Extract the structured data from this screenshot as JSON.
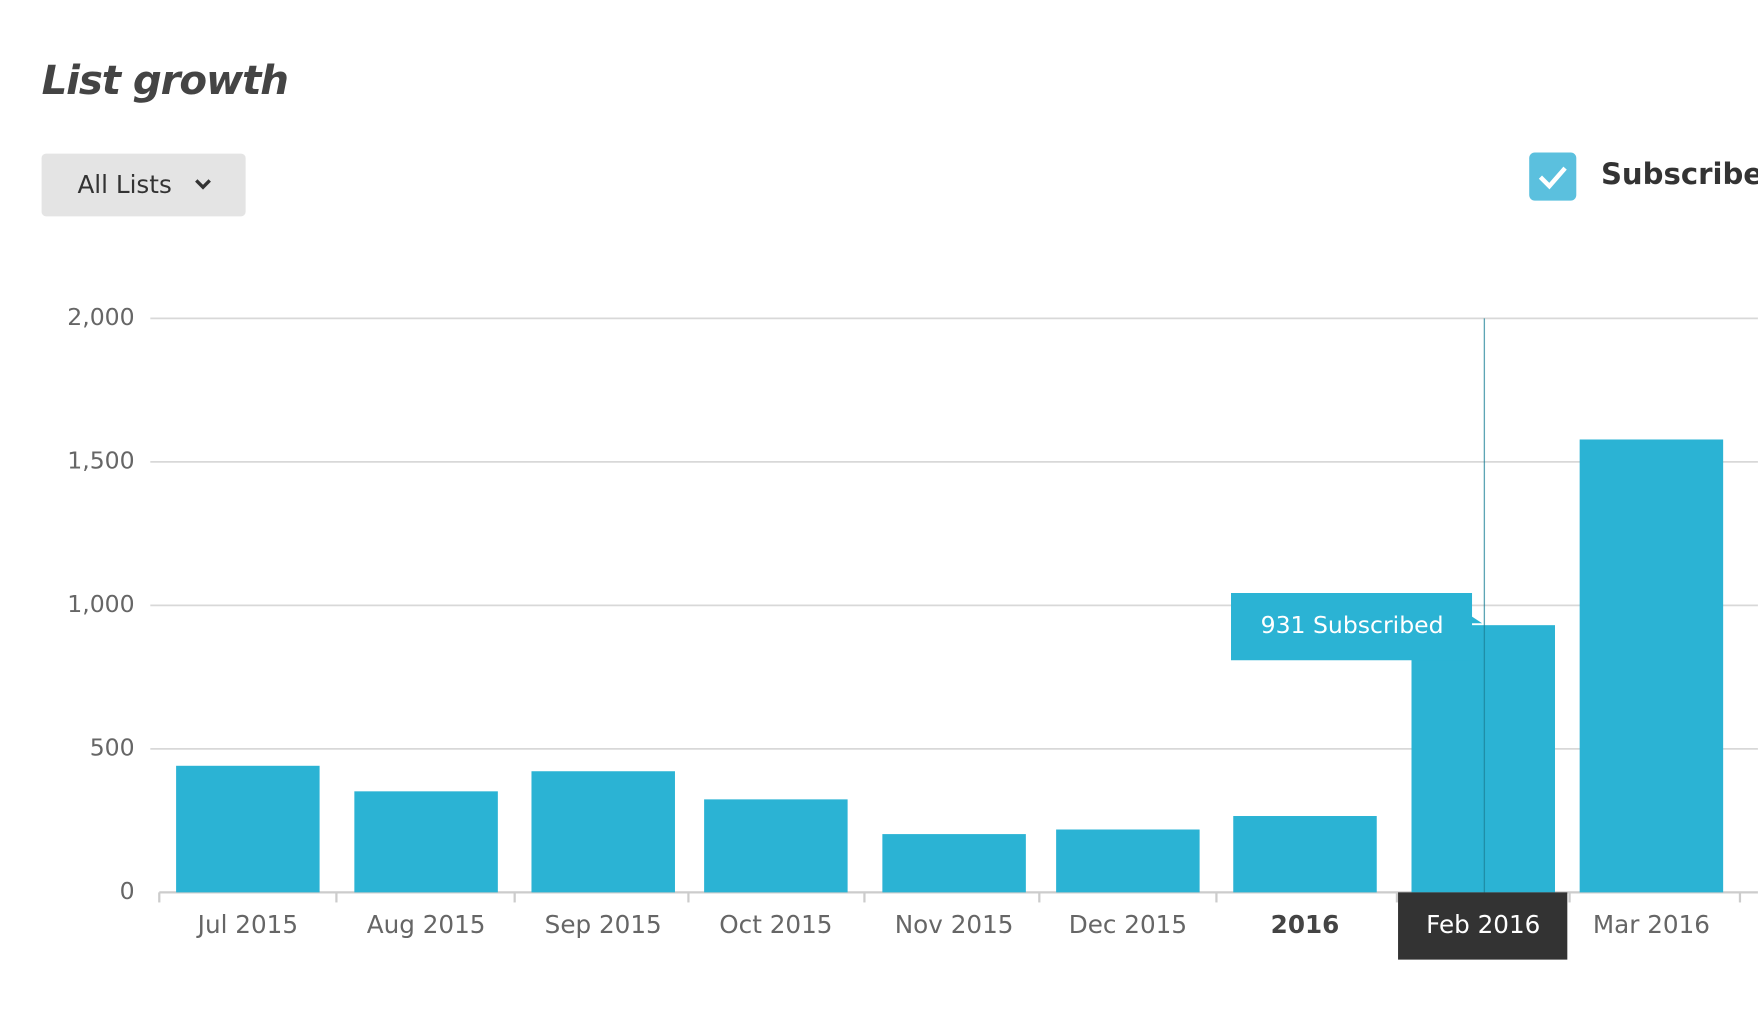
{
  "header": {
    "title": "List growth"
  },
  "controls": {
    "dropdown": "All Lists",
    "legend_checkbox": "Subscribes"
  },
  "chart_data": {
    "type": "bar",
    "categories": [
      "Jul 2015",
      "Aug 2015",
      "Sep 2015",
      "Oct 2015",
      "Nov 2015",
      "Dec 2015",
      "2016",
      "Feb 2016",
      "Mar 2016"
    ],
    "series": [
      {
        "name": "Subscribes",
        "color": "#2bb3d4",
        "values": [
          441,
          352,
          422,
          324,
          203,
          219,
          266,
          931,
          1578
        ]
      }
    ],
    "tooltip": "931 Subscribed",
    "ylim": [
      0,
      2000
    ],
    "yticks": [
      0,
      500,
      {
        "value": 1000,
        "label": "1,000"
      },
      {
        "value": 1500,
        "label": "1,500"
      },
      {
        "value": 2000,
        "label": "2,000"
      }
    ],
    "grid": true
  }
}
